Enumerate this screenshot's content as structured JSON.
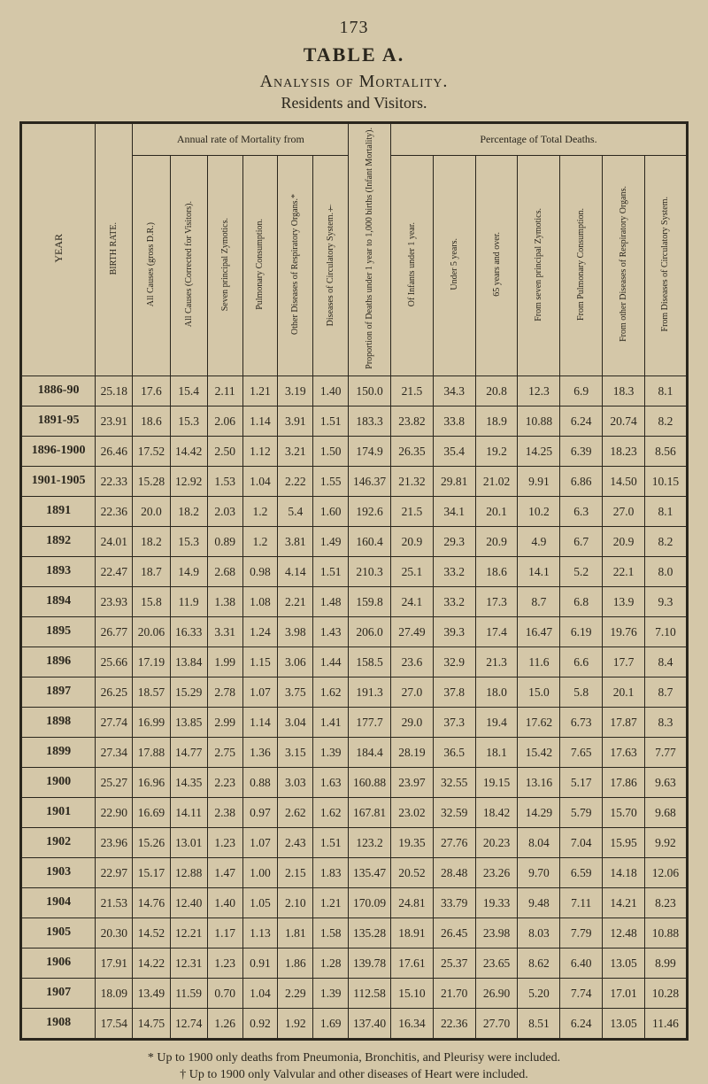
{
  "page_number": "173",
  "table_label": "TABLE A.",
  "subtitle_main": "Analysis of Mortality.",
  "subtitle_sub": "Residents and Visitors.",
  "group_headers": {
    "annual": "Annual rate of Mortality from",
    "percentage": "Percentage of Total Deaths."
  },
  "columns": [
    "YEAR",
    "BIRTH RATE.",
    "All Causes (gross D.R.)",
    "All Causes (Corrected for Visitors).",
    "Seven principal Zymotics.",
    "Pulmonary Consumption.",
    "Other Diseases of Respiratory Organs.*",
    "Diseases of Circulatory System.†",
    "Proportion of Deaths under 1 year to 1,000 births (Infant Mortality).",
    "Of Infants under 1 year.",
    "Under 5 years.",
    "65 years and over.",
    "From seven principal Zymotics.",
    "From Pulmonary Consumption.",
    "From other Diseases of Respiratory Organs.",
    "From Diseases of Circulatory System."
  ],
  "rows": [
    [
      "1886-90",
      "25.18",
      "17.6",
      "15.4",
      "2.11",
      "1.21",
      "3.19",
      "1.40",
      "150.0",
      "21.5",
      "34.3",
      "20.8",
      "12.3",
      "6.9",
      "18.3",
      "8.1"
    ],
    [
      "1891-95",
      "23.91",
      "18.6",
      "15.3",
      "2.06",
      "1.14",
      "3.91",
      "1.51",
      "183.3",
      "23.82",
      "33.8",
      "18.9",
      "10.88",
      "6.24",
      "20.74",
      "8.2"
    ],
    [
      "1896-1900",
      "26.46",
      "17.52",
      "14.42",
      "2.50",
      "1.12",
      "3.21",
      "1.50",
      "174.9",
      "26.35",
      "35.4",
      "19.2",
      "14.25",
      "6.39",
      "18.23",
      "8.56"
    ],
    [
      "1901-1905",
      "22.33",
      "15.28",
      "12.92",
      "1.53",
      "1.04",
      "2.22",
      "1.55",
      "146.37",
      "21.32",
      "29.81",
      "21.02",
      "9.91",
      "6.86",
      "14.50",
      "10.15"
    ],
    [
      "1891",
      "22.36",
      "20.0",
      "18.2",
      "2.03",
      "1.2",
      "5.4",
      "1.60",
      "192.6",
      "21.5",
      "34.1",
      "20.1",
      "10.2",
      "6.3",
      "27.0",
      "8.1"
    ],
    [
      "1892",
      "24.01",
      "18.2",
      "15.3",
      "0.89",
      "1.2",
      "3.81",
      "1.49",
      "160.4",
      "20.9",
      "29.3",
      "20.9",
      "4.9",
      "6.7",
      "20.9",
      "8.2"
    ],
    [
      "1893",
      "22.47",
      "18.7",
      "14.9",
      "2.68",
      "0.98",
      "4.14",
      "1.51",
      "210.3",
      "25.1",
      "33.2",
      "18.6",
      "14.1",
      "5.2",
      "22.1",
      "8.0"
    ],
    [
      "1894",
      "23.93",
      "15.8",
      "11.9",
      "1.38",
      "1.08",
      "2.21",
      "1.48",
      "159.8",
      "24.1",
      "33.2",
      "17.3",
      "8.7",
      "6.8",
      "13.9",
      "9.3"
    ],
    [
      "1895",
      "26.77",
      "20.06",
      "16.33",
      "3.31",
      "1.24",
      "3.98",
      "1.43",
      "206.0",
      "27.49",
      "39.3",
      "17.4",
      "16.47",
      "6.19",
      "19.76",
      "7.10"
    ],
    [
      "1896",
      "25.66",
      "17.19",
      "13.84",
      "1.99",
      "1.15",
      "3.06",
      "1.44",
      "158.5",
      "23.6",
      "32.9",
      "21.3",
      "11.6",
      "6.6",
      "17.7",
      "8.4"
    ],
    [
      "1897",
      "26.25",
      "18.57",
      "15.29",
      "2.78",
      "1.07",
      "3.75",
      "1.62",
      "191.3",
      "27.0",
      "37.8",
      "18.0",
      "15.0",
      "5.8",
      "20.1",
      "8.7"
    ],
    [
      "1898",
      "27.74",
      "16.99",
      "13.85",
      "2.99",
      "1.14",
      "3.04",
      "1.41",
      "177.7",
      "29.0",
      "37.3",
      "19.4",
      "17.62",
      "6.73",
      "17.87",
      "8.3"
    ],
    [
      "1899",
      "27.34",
      "17.88",
      "14.77",
      "2.75",
      "1.36",
      "3.15",
      "1.39",
      "184.4",
      "28.19",
      "36.5",
      "18.1",
      "15.42",
      "7.65",
      "17.63",
      "7.77"
    ],
    [
      "1900",
      "25.27",
      "16.96",
      "14.35",
      "2.23",
      "0.88",
      "3.03",
      "1.63",
      "160.88",
      "23.97",
      "32.55",
      "19.15",
      "13.16",
      "5.17",
      "17.86",
      "9.63"
    ],
    [
      "1901",
      "22.90",
      "16.69",
      "14.11",
      "2.38",
      "0.97",
      "2.62",
      "1.62",
      "167.81",
      "23.02",
      "32.59",
      "18.42",
      "14.29",
      "5.79",
      "15.70",
      "9.68"
    ],
    [
      "1902",
      "23.96",
      "15.26",
      "13.01",
      "1.23",
      "1.07",
      "2.43",
      "1.51",
      "123.2",
      "19.35",
      "27.76",
      "20.23",
      "8.04",
      "7.04",
      "15.95",
      "9.92"
    ],
    [
      "1903",
      "22.97",
      "15.17",
      "12.88",
      "1.47",
      "1.00",
      "2.15",
      "1.83",
      "135.47",
      "20.52",
      "28.48",
      "23.26",
      "9.70",
      "6.59",
      "14.18",
      "12.06"
    ],
    [
      "1904",
      "21.53",
      "14.76",
      "12.40",
      "1.40",
      "1.05",
      "2.10",
      "1.21",
      "170.09",
      "24.81",
      "33.79",
      "19.33",
      "9.48",
      "7.11",
      "14.21",
      "8.23"
    ],
    [
      "1905",
      "20.30",
      "14.52",
      "12.21",
      "1.17",
      "1.13",
      "1.81",
      "1.58",
      "135.28",
      "18.91",
      "26.45",
      "23.98",
      "8.03",
      "7.79",
      "12.48",
      "10.88"
    ],
    [
      "1906",
      "17.91",
      "14.22",
      "12.31",
      "1.23",
      "0.91",
      "1.86",
      "1.28",
      "139.78",
      "17.61",
      "25.37",
      "23.65",
      "8.62",
      "6.40",
      "13.05",
      "8.99"
    ],
    [
      "1907",
      "18.09",
      "13.49",
      "11.59",
      "0.70",
      "1.04",
      "2.29",
      "1.39",
      "112.58",
      "15.10",
      "21.70",
      "26.90",
      "5.20",
      "7.74",
      "17.01",
      "10.28"
    ],
    [
      "1908",
      "17.54",
      "14.75",
      "12.74",
      "1.26",
      "0.92",
      "1.92",
      "1.69",
      "137.40",
      "16.34",
      "22.36",
      "27.70",
      "8.51",
      "6.24",
      "13.05",
      "11.46"
    ]
  ],
  "footnotes": {
    "a": "* Up to 1900 only deaths from Pneumonia, Bronchitis, and Pleurisy were included.",
    "b": "† Up to 1900 only Valvular and other diseases of Heart were included."
  }
}
